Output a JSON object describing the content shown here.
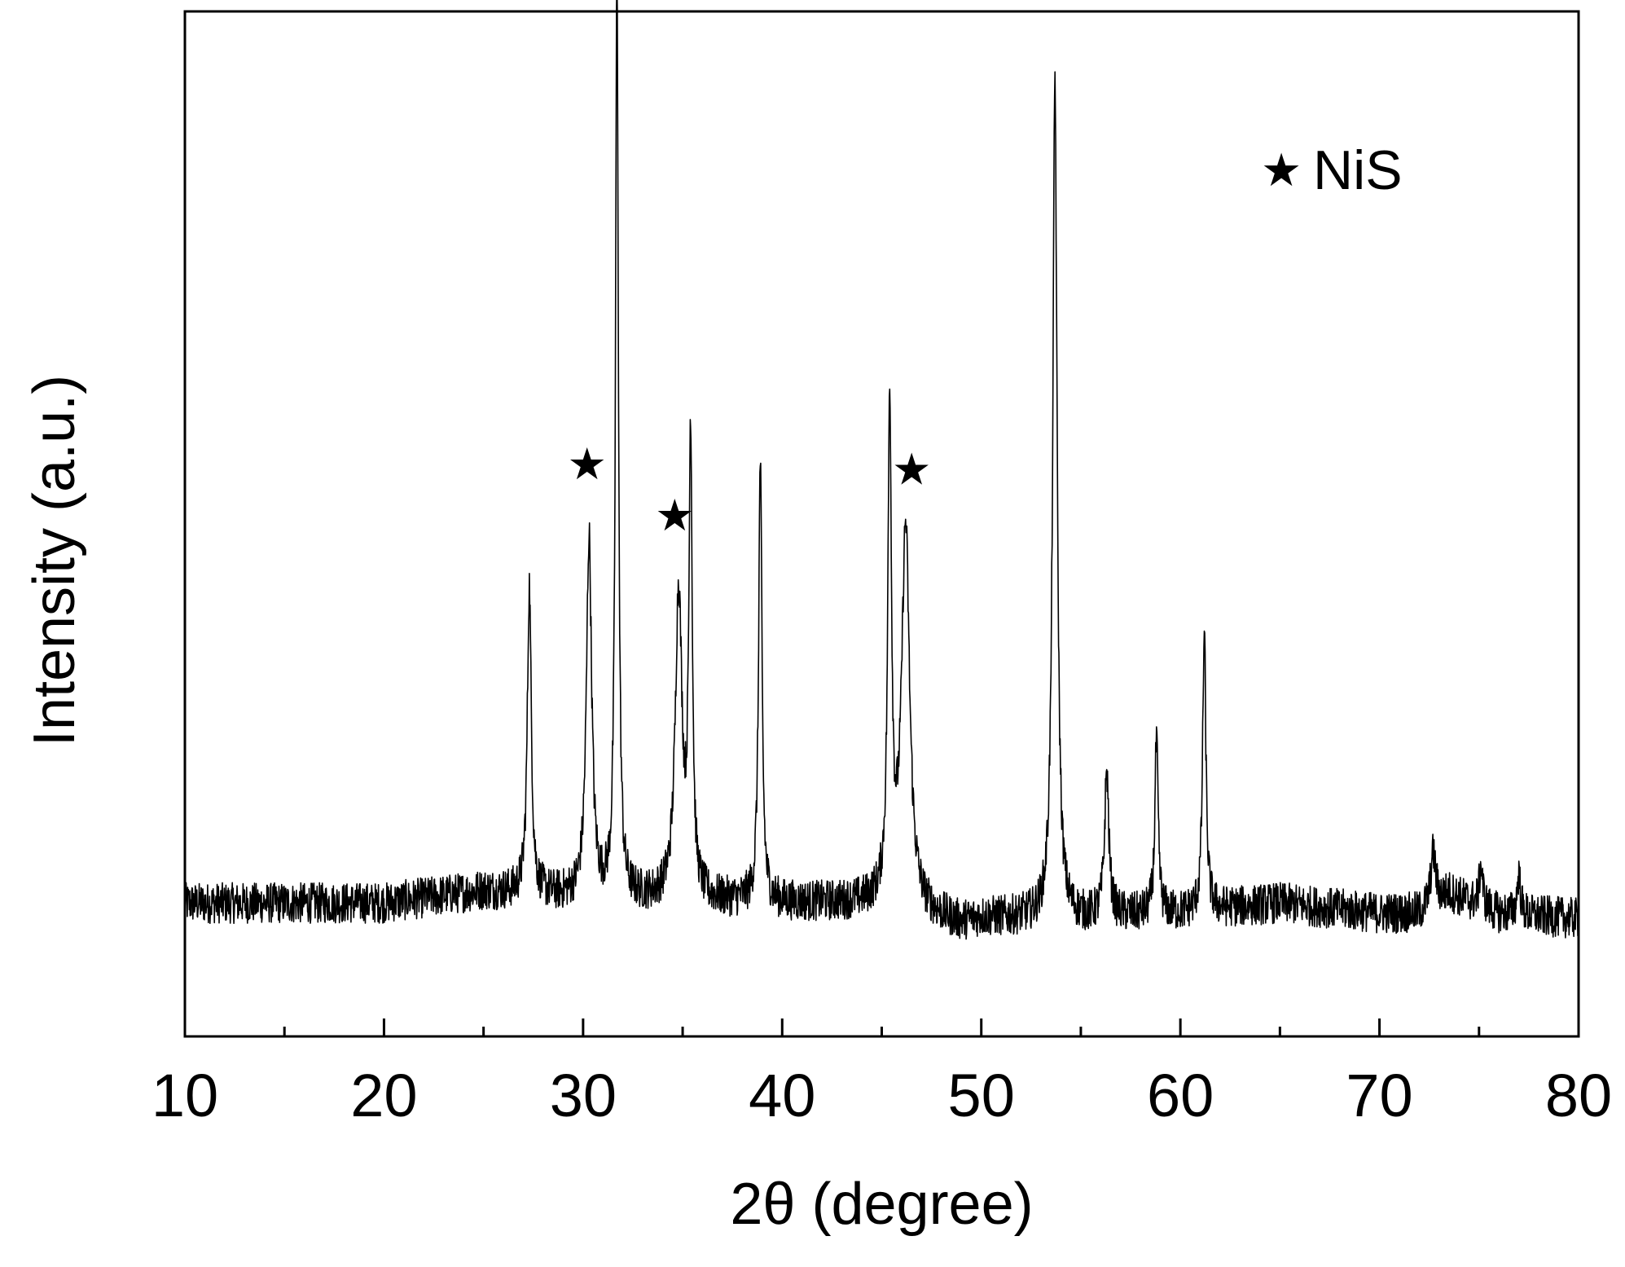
{
  "chart_data": {
    "type": "line",
    "title": "",
    "xlabel": "2θ (degree)",
    "ylabel": "Intensity (a.u.)",
    "xlim": [
      10,
      80
    ],
    "ylim": [
      0,
      1
    ],
    "x_ticks": [
      10,
      20,
      30,
      40,
      50,
      60,
      70,
      80
    ],
    "x_tick_labels": [
      "10",
      "20",
      "30",
      "40",
      "50",
      "60",
      "70",
      "80"
    ],
    "x_minor_step": 5,
    "y_ticks_shown": false,
    "grid": false,
    "legend": {
      "position": "top-right",
      "entries": [
        {
          "marker": "★",
          "label": "NiS"
        }
      ]
    },
    "series": [
      {
        "baseline": [
          [
            10,
            0.13
          ],
          [
            20,
            0.13
          ],
          [
            25,
            0.142
          ],
          [
            30,
            0.135
          ],
          [
            32,
            0.135
          ],
          [
            40,
            0.13
          ],
          [
            45,
            0.13
          ],
          [
            49,
            0.11
          ],
          [
            50,
            0.115
          ],
          [
            55,
            0.115
          ],
          [
            60,
            0.12
          ],
          [
            65,
            0.13
          ],
          [
            70,
            0.12
          ],
          [
            72,
            0.12
          ],
          [
            73.5,
            0.14
          ],
          [
            76,
            0.12
          ],
          [
            80,
            0.115
          ]
        ],
        "peaks": [
          {
            "x": 27.3,
            "height": 0.3,
            "width": 0.12
          },
          {
            "x": 30.3,
            "height": 0.35,
            "width": 0.16
          },
          {
            "x": 31.7,
            "height": 0.89,
            "width": 0.09
          },
          {
            "x": 34.8,
            "height": 0.3,
            "width": 0.2
          },
          {
            "x": 35.4,
            "height": 0.45,
            "width": 0.1
          },
          {
            "x": 38.9,
            "height": 0.43,
            "width": 0.1
          },
          {
            "x": 45.4,
            "height": 0.48,
            "width": 0.11
          },
          {
            "x": 46.2,
            "height": 0.37,
            "width": 0.24
          },
          {
            "x": 53.7,
            "height": 0.82,
            "width": 0.13
          },
          {
            "x": 56.3,
            "height": 0.14,
            "width": 0.13
          },
          {
            "x": 58.8,
            "height": 0.17,
            "width": 0.1
          },
          {
            "x": 61.2,
            "height": 0.27,
            "width": 0.1
          },
          {
            "x": 72.7,
            "height": 0.05,
            "width": 0.15
          },
          {
            "x": 75.1,
            "height": 0.04,
            "width": 0.1
          },
          {
            "x": 77.0,
            "height": 0.04,
            "width": 0.1
          }
        ],
        "noise_amplitude": 0.02
      }
    ],
    "annotations": [
      {
        "text": "★",
        "x": 30.2,
        "y": 0.555,
        "phase": "NiS"
      },
      {
        "text": "★",
        "x": 34.6,
        "y": 0.505,
        "phase": "NiS"
      },
      {
        "text": "★",
        "x": 46.5,
        "y": 0.55,
        "phase": "NiS"
      }
    ]
  }
}
